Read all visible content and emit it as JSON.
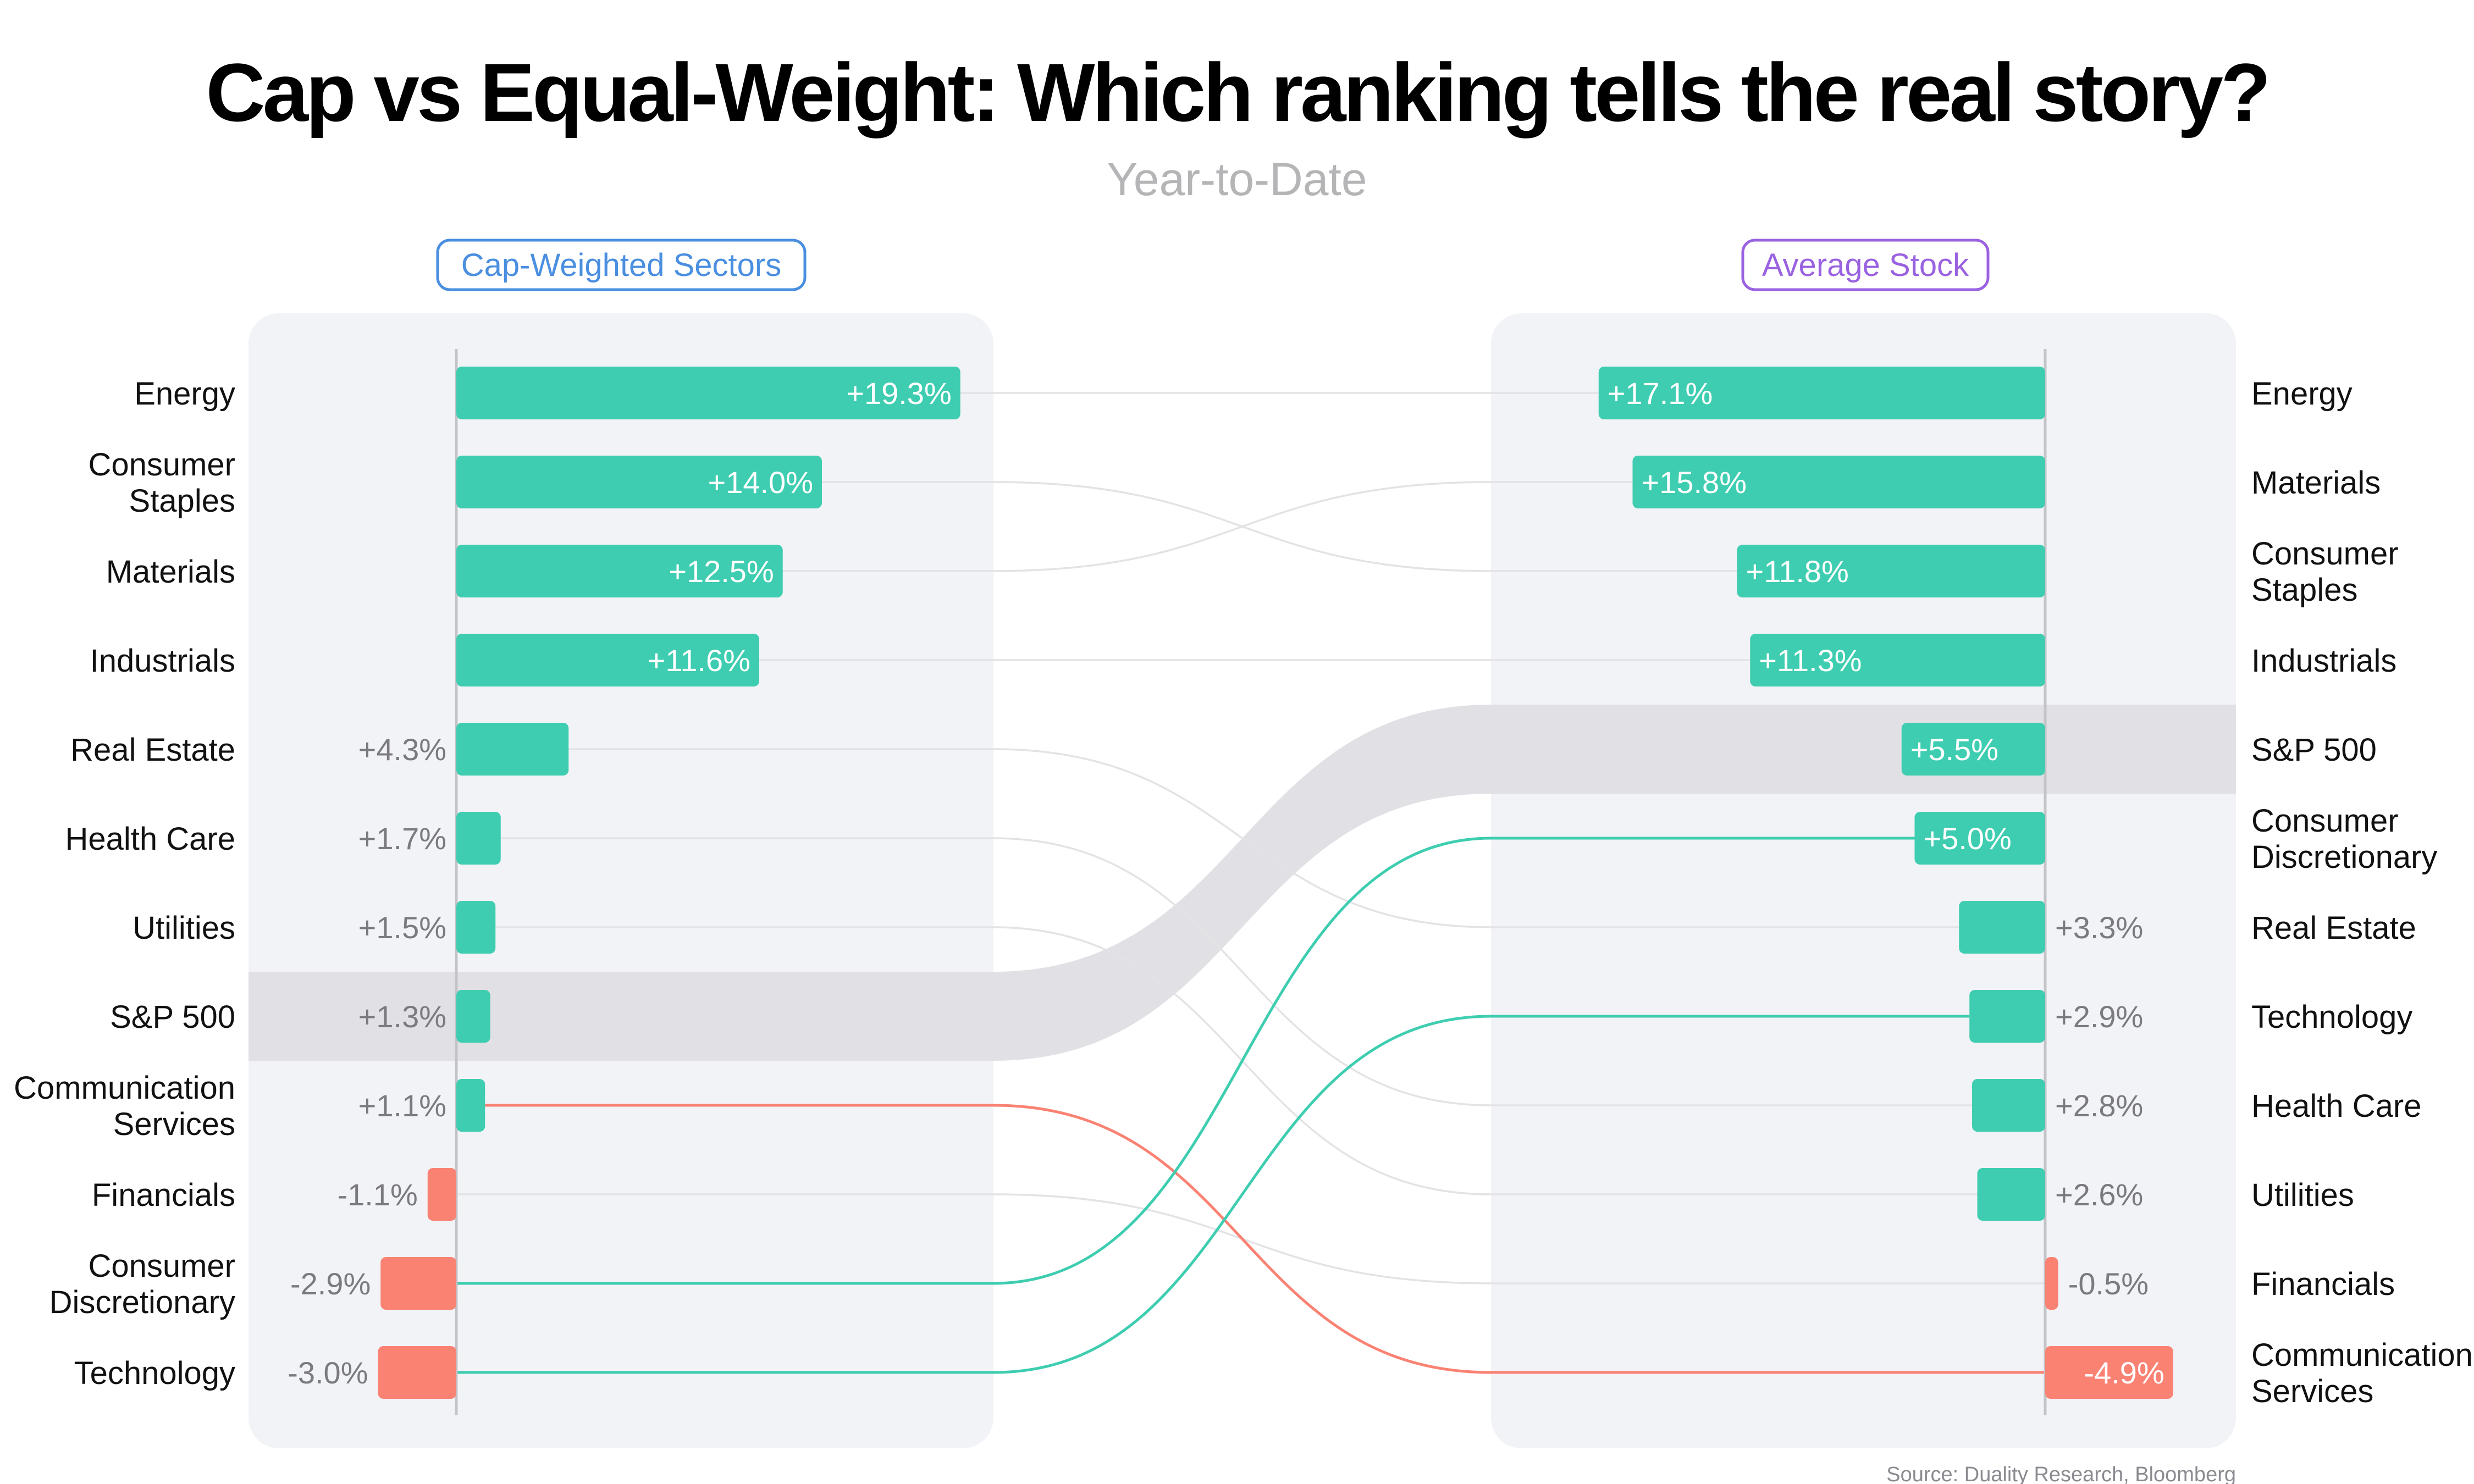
{
  "title": "Cap vs Equal-Weight: Which ranking tells the real story?",
  "subtitle": "Year-to-Date",
  "source": "Source: Duality Research, Bloomberg",
  "colors": {
    "positive": "#3ecdb0",
    "negative": "#fa8273",
    "cap_pill": "#4a8fe0",
    "avg_pill": "#9a62e0",
    "panel": "#f2f3f7",
    "highlight": "#e1e1e5",
    "connector": "#e3e3e6",
    "axis": "#c4c4c8"
  },
  "chart_data": {
    "type": "bar",
    "title": "Cap vs Equal-Weight: Which ranking tells the real story?",
    "subtitle": "Year-to-Date",
    "unit": "%",
    "highlight": "S&P 500",
    "left": {
      "name": "Cap-Weighted Sectors",
      "categories": [
        {
          "lines": [
            "Energy"
          ],
          "value": 19.3,
          "label": "+19.3%"
        },
        {
          "lines": [
            "Consumer",
            "Staples"
          ],
          "value": 14.0,
          "label": "+14.0%"
        },
        {
          "lines": [
            "Materials"
          ],
          "value": 12.5,
          "label": "+12.5%"
        },
        {
          "lines": [
            "Industrials"
          ],
          "value": 11.6,
          "label": "+11.6%"
        },
        {
          "lines": [
            "Real Estate"
          ],
          "value": 4.3,
          "label": "+4.3%"
        },
        {
          "lines": [
            "Health Care"
          ],
          "value": 1.7,
          "label": "+1.7%"
        },
        {
          "lines": [
            "Utilities"
          ],
          "value": 1.5,
          "label": "+1.5%"
        },
        {
          "lines": [
            "S&P 500"
          ],
          "value": 1.3,
          "label": "+1.3%"
        },
        {
          "lines": [
            "Communication",
            "Services"
          ],
          "value": 1.1,
          "label": "+1.1%"
        },
        {
          "lines": [
            "Financials"
          ],
          "value": -1.1,
          "label": "-1.1%"
        },
        {
          "lines": [
            "Consumer",
            "Discretionary"
          ],
          "value": -2.9,
          "label": "-2.9%"
        },
        {
          "lines": [
            "Technology"
          ],
          "value": -3.0,
          "label": "-3.0%"
        }
      ]
    },
    "right": {
      "name": "Average Stock",
      "categories": [
        {
          "lines": [
            "Energy"
          ],
          "value": 17.1,
          "label": "+17.1%"
        },
        {
          "lines": [
            "Materials"
          ],
          "value": 15.8,
          "label": "+15.8%"
        },
        {
          "lines": [
            "Consumer",
            "Staples"
          ],
          "value": 11.8,
          "label": "+11.8%"
        },
        {
          "lines": [
            "Industrials"
          ],
          "value": 11.3,
          "label": "+11.3%"
        },
        {
          "lines": [
            "S&P 500"
          ],
          "value": 5.5,
          "label": "+5.5%"
        },
        {
          "lines": [
            "Consumer",
            "Discretionary"
          ],
          "value": 5.0,
          "label": "+5.0%"
        },
        {
          "lines": [
            "Real Estate"
          ],
          "value": 3.3,
          "label": "+3.3%"
        },
        {
          "lines": [
            "Technology"
          ],
          "value": 2.9,
          "label": "+2.9%"
        },
        {
          "lines": [
            "Health Care"
          ],
          "value": 2.8,
          "label": "+2.8%"
        },
        {
          "lines": [
            "Utilities"
          ],
          "value": 2.6,
          "label": "+2.6%"
        },
        {
          "lines": [
            "Financials"
          ],
          "value": -0.5,
          "label": "-0.5%"
        },
        {
          "lines": [
            "Communication",
            "Services"
          ],
          "value": -4.9,
          "label": "-4.9%"
        }
      ]
    },
    "emphasized_links": [
      {
        "name": "Consumer Discretionary",
        "color": "positive"
      },
      {
        "name": "Technology",
        "color": "positive"
      },
      {
        "name": "Communication Services",
        "color": "negative"
      }
    ]
  }
}
